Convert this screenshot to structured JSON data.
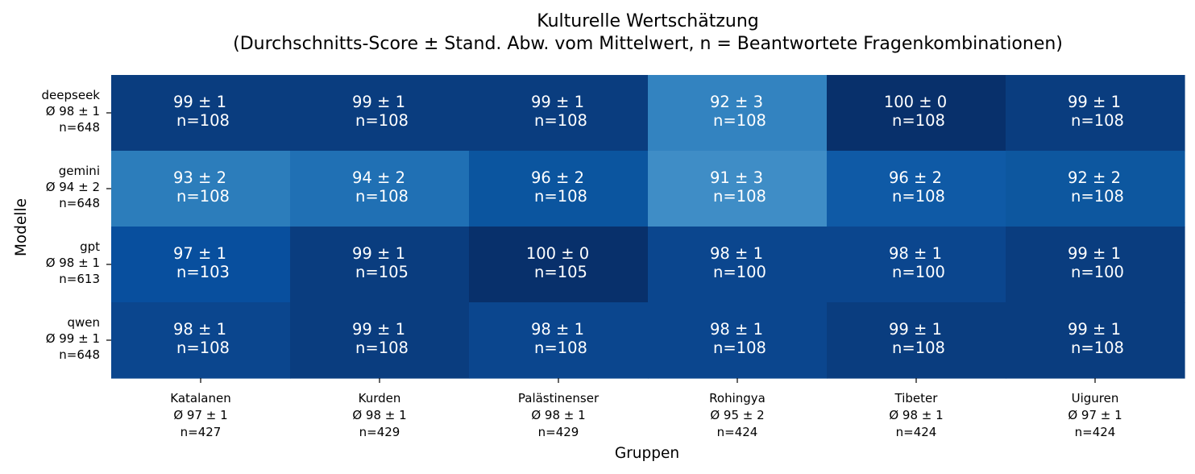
{
  "chart_data": {
    "type": "heatmap",
    "title": "Kulturelle Wertschätzung",
    "subtitle": "(Durchschnitts-Score ± Stand. Abw. vom Mittelwert, n = Beantwortete Fragenkombinationen)",
    "xlabel": "Gruppen",
    "ylabel": "Modelle",
    "columns": [
      {
        "name": "Katalanen",
        "summary": "Ø 97 ± 1",
        "n": "n=427"
      },
      {
        "name": "Kurden",
        "summary": "Ø 98 ± 1",
        "n": "n=429"
      },
      {
        "name": "Palästinenser",
        "summary": "Ø 98 ± 1",
        "n": "n=429"
      },
      {
        "name": "Rohingya",
        "summary": "Ø 95 ± 2",
        "n": "n=424"
      },
      {
        "name": "Tibeter",
        "summary": "Ø 98 ± 1",
        "n": "n=424"
      },
      {
        "name": "Uiguren",
        "summary": "Ø 97 ± 1",
        "n": "n=424"
      }
    ],
    "rows": [
      {
        "name": "deepseek",
        "summary": "Ø 98 ± 1",
        "n": "n=648"
      },
      {
        "name": "gemini",
        "summary": "Ø 94 ± 2",
        "n": "n=648"
      },
      {
        "name": "gpt",
        "summary": "Ø 98 ± 1",
        "n": "n=613"
      },
      {
        "name": "qwen",
        "summary": "Ø 99 ± 1",
        "n": "n=648"
      }
    ],
    "values": [
      [
        99,
        99,
        99,
        92,
        100,
        99
      ],
      [
        93,
        94,
        96,
        91,
        96,
        92
      ],
      [
        97,
        99,
        100,
        98,
        98,
        99
      ],
      [
        98,
        99,
        98,
        98,
        99,
        99
      ]
    ],
    "sd": [
      [
        1,
        1,
        1,
        3,
        0,
        1
      ],
      [
        2,
        2,
        2,
        3,
        2,
        2
      ],
      [
        1,
        1,
        0,
        1,
        1,
        1
      ],
      [
        1,
        1,
        1,
        1,
        1,
        1
      ]
    ],
    "counts": [
      [
        108,
        108,
        108,
        108,
        108,
        108
      ],
      [
        108,
        108,
        108,
        108,
        108,
        108
      ],
      [
        103,
        105,
        105,
        100,
        100,
        100
      ],
      [
        108,
        108,
        108,
        108,
        108,
        108
      ]
    ],
    "colormap": "Blues",
    "colors": {
      "99": "#0a3d7f",
      "100": "#08306b",
      "98": "#0b468e",
      "97": "#084f9e",
      "96": "#0f5aa6",
      "94": "#2070b4",
      "93": "#2c7dbb",
      "92": "#3383c0",
      "91": "#3f8dc6"
    },
    "colors_by_cell": {
      "r1c2": "#0b559f",
      "r1c5": "#0d579f"
    }
  }
}
